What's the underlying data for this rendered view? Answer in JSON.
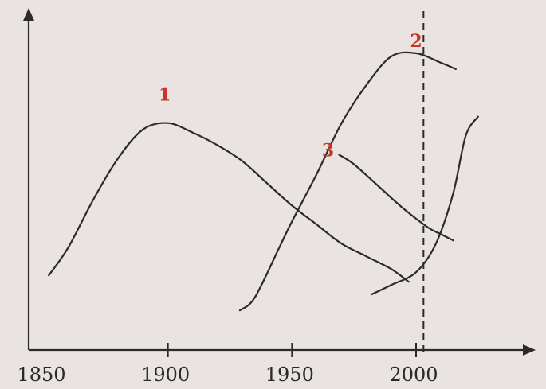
{
  "chart_data": {
    "type": "line",
    "title": "",
    "xlabel": "",
    "ylabel": "",
    "x_ticks": [
      {
        "label": "1850",
        "value": 1850
      },
      {
        "label": "1900",
        "value": 1900
      },
      {
        "label": "1950",
        "value": 1950
      },
      {
        "label": "2000",
        "value": 2000
      }
    ],
    "xlim": [
      1850,
      2015
    ],
    "ylim": [
      0,
      100
    ],
    "vertical_reference": {
      "x": 2003,
      "style": "dashed"
    },
    "series": [
      {
        "name": "1",
        "points": [
          [
            1852,
            21
          ],
          [
            1860,
            30
          ],
          [
            1870,
            45
          ],
          [
            1880,
            58
          ],
          [
            1890,
            67
          ],
          [
            1900,
            69
          ],
          [
            1910,
            66
          ],
          [
            1920,
            62
          ],
          [
            1930,
            57
          ],
          [
            1940,
            50
          ],
          [
            1950,
            43
          ],
          [
            1960,
            37
          ],
          [
            1970,
            31
          ],
          [
            1980,
            27
          ],
          [
            1990,
            23
          ],
          [
            1997,
            19
          ]
        ]
      },
      {
        "name": "2",
        "points": [
          [
            1929,
            10
          ],
          [
            1935,
            14
          ],
          [
            1945,
            30
          ],
          [
            1950,
            38
          ],
          [
            1960,
            53
          ],
          [
            1970,
            69
          ],
          [
            1980,
            81
          ],
          [
            1990,
            90
          ],
          [
            2000,
            91
          ],
          [
            2010,
            88
          ],
          [
            2016,
            86
          ]
        ]
      },
      {
        "name": "3",
        "points": [
          [
            1969,
            59
          ],
          [
            1975,
            56
          ],
          [
            1985,
            49
          ],
          [
            1995,
            42
          ],
          [
            2005,
            36
          ],
          [
            2010,
            34
          ],
          [
            2015,
            32
          ]
        ]
      },
      {
        "name": "",
        "points": [
          [
            1982,
            15
          ],
          [
            1990,
            18
          ],
          [
            2000,
            22
          ],
          [
            2008,
            31
          ],
          [
            2015,
            47
          ],
          [
            2020,
            65
          ],
          [
            2025,
            71
          ]
        ]
      }
    ],
    "grid": false,
    "legend": "inline-labels"
  },
  "colors": {
    "line": "#2b2b2b",
    "axis": "#2b2b2b",
    "label": "#c8362b",
    "background": "#e9e4e1"
  }
}
